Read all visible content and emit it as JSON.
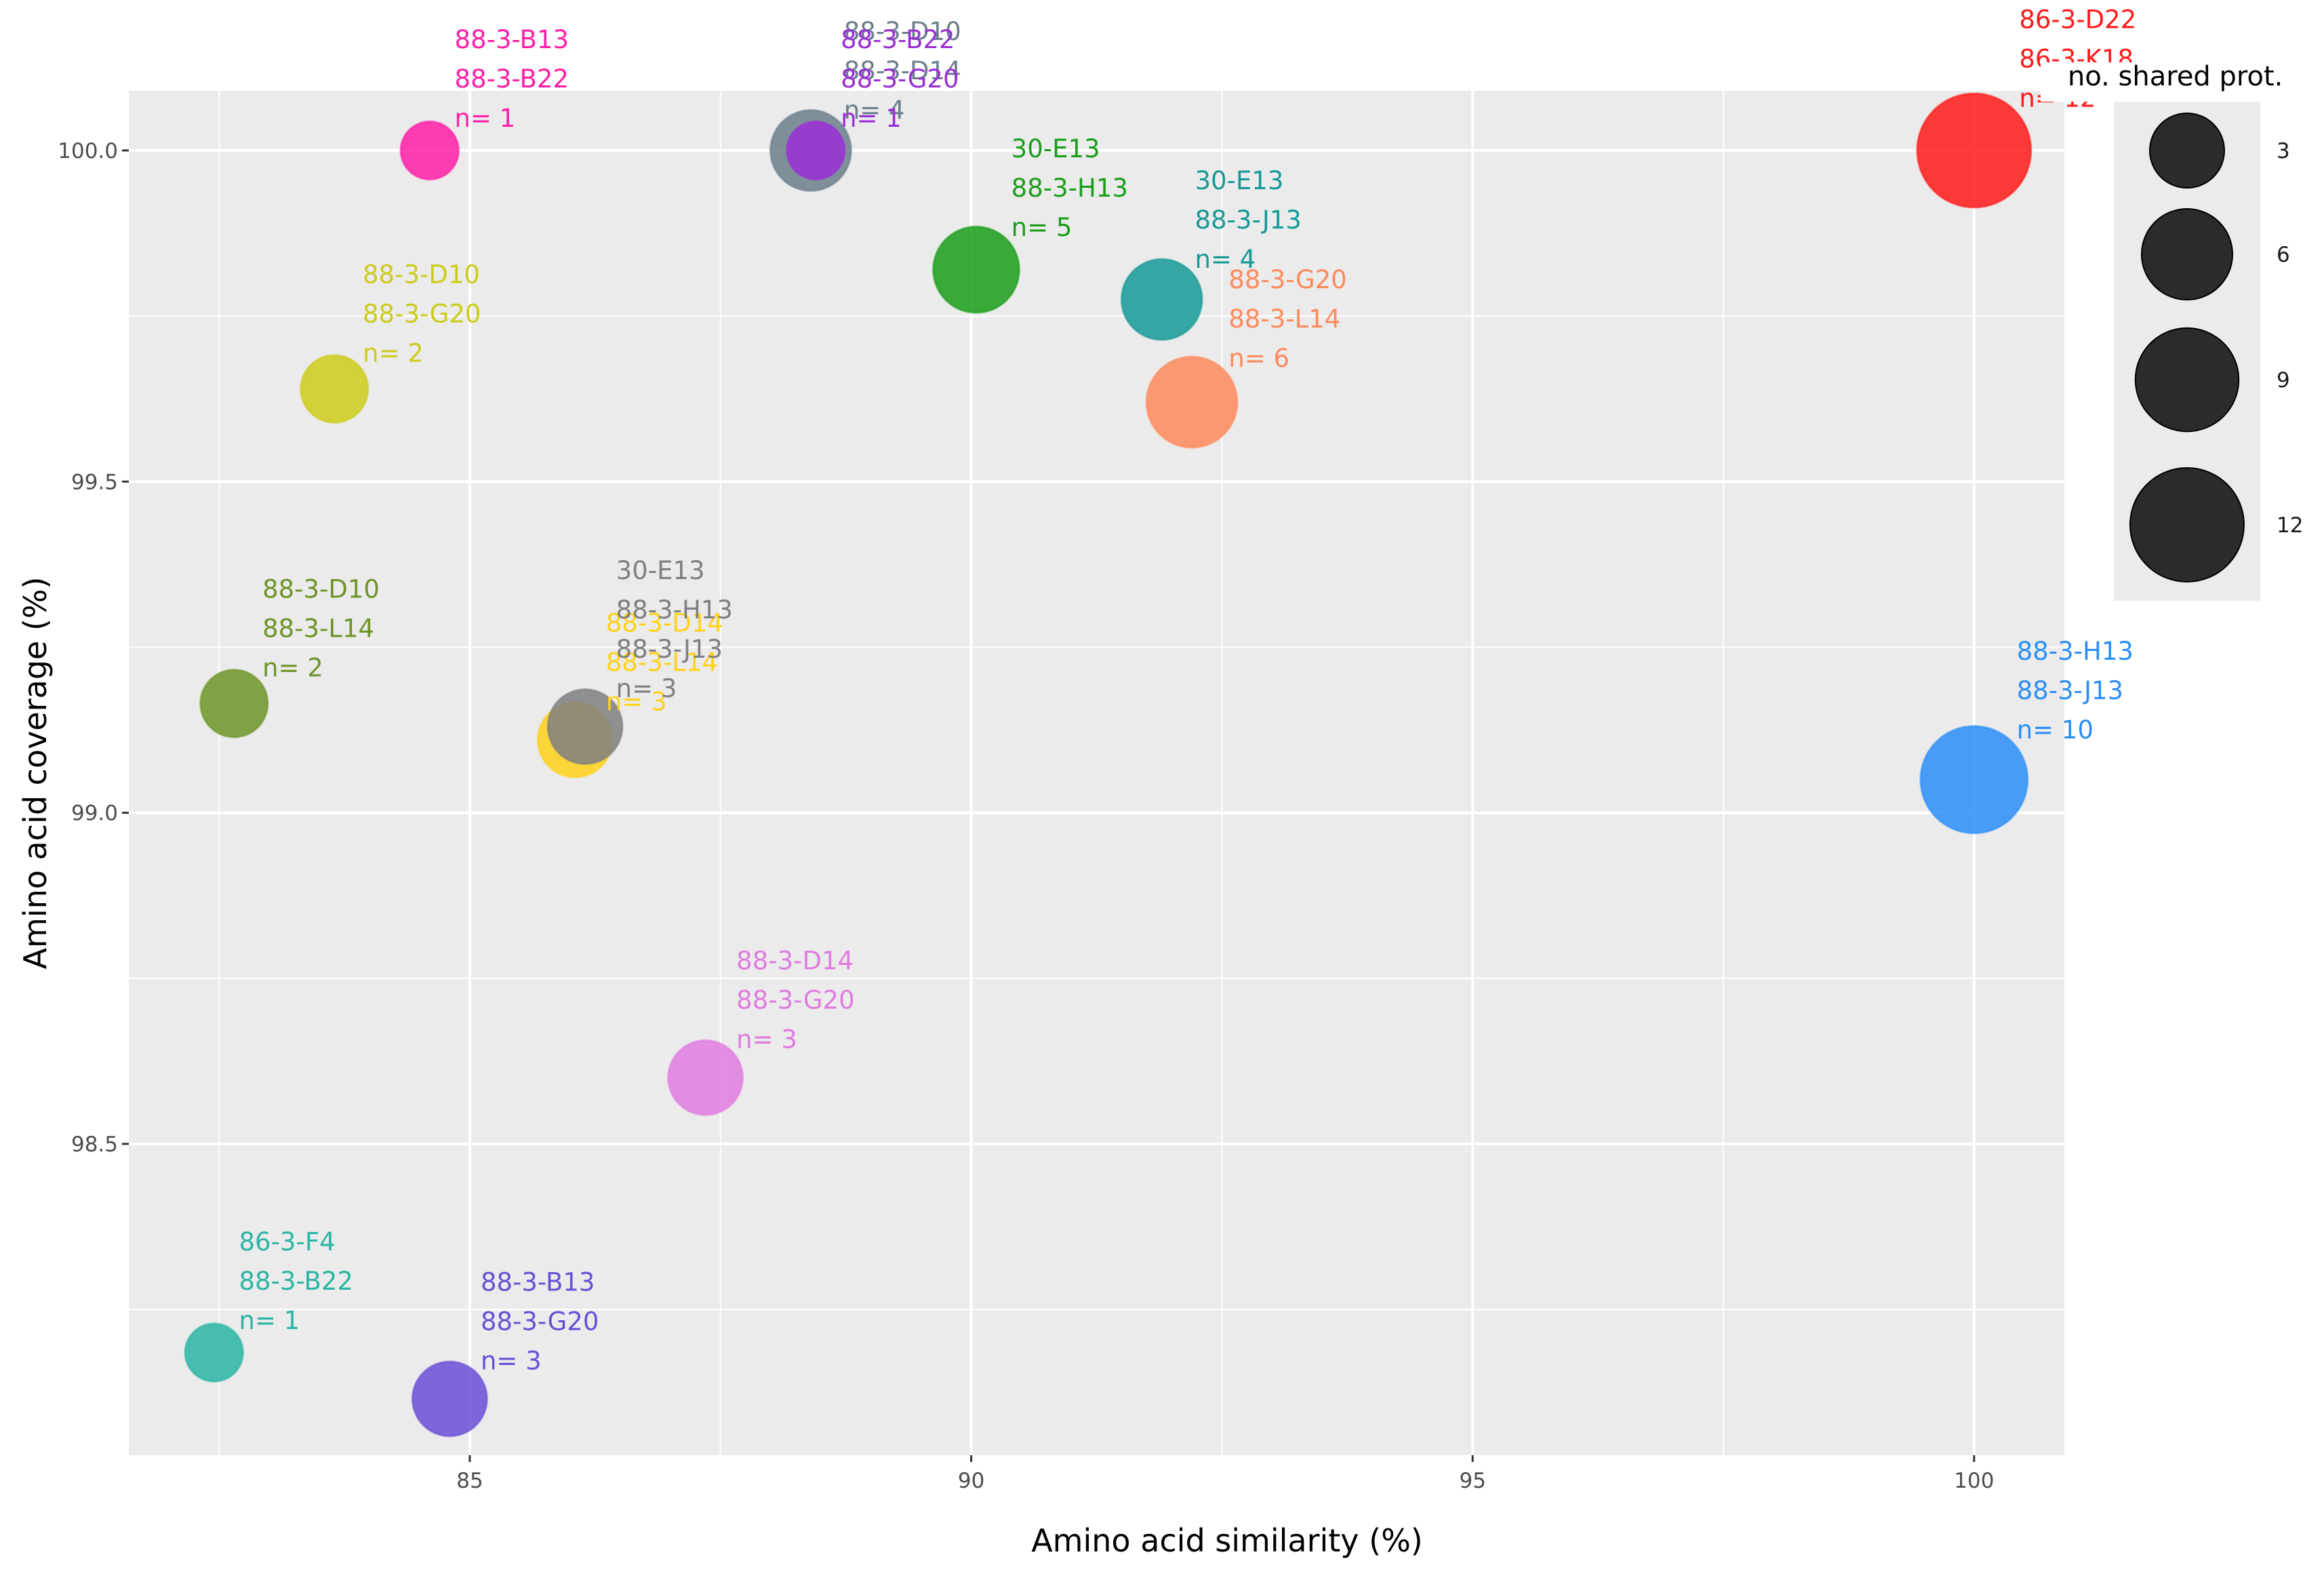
{
  "chart_data": {
    "type": "scatter",
    "xlabel": "Amino acid similarity (%)",
    "ylabel": "Amino acid coverage (%)",
    "xlim": [
      81.6,
      100.9
    ],
    "ylim": [
      98.03,
      100.09
    ],
    "x_ticks": [
      85,
      90,
      95,
      100
    ],
    "y_ticks": [
      98.5,
      99.0,
      99.5,
      100.0
    ],
    "x_tick_labels": [
      "85",
      "90",
      "95",
      "100"
    ],
    "y_tick_labels": [
      "98.5",
      "99.0",
      "99.5",
      "100.0"
    ],
    "grid": true,
    "legend": {
      "title": "no. shared prot.",
      "position": "right",
      "entries": [
        {
          "label": "3",
          "size": 3
        },
        {
          "label": "6",
          "size": 6
        },
        {
          "label": "9",
          "size": 9
        },
        {
          "label": "12",
          "size": 12
        }
      ]
    },
    "points": [
      {
        "x": 84.6,
        "y": 100.0,
        "n": 1,
        "color": "#ff1fa8",
        "lines": [
          "88-3-B13",
          "88-3-B22",
          "n= 1"
        ]
      },
      {
        "x": 88.4,
        "y": 100.0,
        "n": 4,
        "color": "#6b7f8c",
        "lines": [
          "88-3-D10",
          "88-3-D14",
          "n= 4"
        ]
      },
      {
        "x": 88.45,
        "y": 100.0,
        "n": 1,
        "color": "#9b2fd6",
        "lines": [
          "88-3-B22",
          "88-3-G20",
          "n= 1"
        ]
      },
      {
        "x": 100.0,
        "y": 100.0,
        "n": 12,
        "color": "#ff1a1a",
        "lines": [
          "86-3-D22",
          "86-3-K18",
          "n= 12"
        ]
      },
      {
        "x": 90.05,
        "y": 99.82,
        "n": 5,
        "color": "#1a9e1a",
        "lines": [
          "30-E13",
          "88-3-H13",
          "n=  5"
        ]
      },
      {
        "x": 91.9,
        "y": 99.775,
        "n": 4,
        "color": "#159a96",
        "lines": [
          "30-E13",
          "88-3-J13",
          "n= 4"
        ]
      },
      {
        "x": 92.2,
        "y": 99.62,
        "n": 6,
        "color": "#ff8a5c",
        "lines": [
          "88-3-G20",
          "88-3-L14",
          "n= 6"
        ]
      },
      {
        "x": 83.65,
        "y": 99.64,
        "n": 2,
        "color": "#cccc1a",
        "lines": [
          "88-3-D10",
          "88-3-G20",
          "n= 2"
        ]
      },
      {
        "x": 82.65,
        "y": 99.165,
        "n": 2,
        "color": "#6e9428",
        "lines": [
          "88-3-D10",
          "88-3-L14",
          "n= 2"
        ]
      },
      {
        "x": 86.05,
        "y": 99.11,
        "n": 3,
        "color": "#ffd21a",
        "lines": [
          "88-3-D14",
          "88-3-L14",
          "n= 3"
        ]
      },
      {
        "x": 86.15,
        "y": 99.13,
        "n": 3,
        "color": "#7f7f7f",
        "lines": [
          "30-E13",
          "88-3-H13",
          "88-3-J13",
          "n= 3"
        ]
      },
      {
        "x": 100.0,
        "y": 99.05,
        "n": 10,
        "color": "#2b8ef8",
        "lines": [
          "88-3-H13",
          "88-3-J13",
          "n= 10"
        ]
      },
      {
        "x": 87.35,
        "y": 98.6,
        "n": 3,
        "color": "#e07be0",
        "lines": [
          "88-3-D14",
          "88-3-G20",
          "n= 3"
        ]
      },
      {
        "x": 82.45,
        "y": 98.185,
        "n": 1,
        "color": "#2ab5a5",
        "lines": [
          "86-3-F4",
          "88-3-B22",
          "n= 1"
        ]
      },
      {
        "x": 84.8,
        "y": 98.115,
        "n": 3,
        "color": "#6a4fd6",
        "lines": [
          "88-3-B13",
          "88-3-G20",
          "n= 3"
        ]
      }
    ]
  }
}
